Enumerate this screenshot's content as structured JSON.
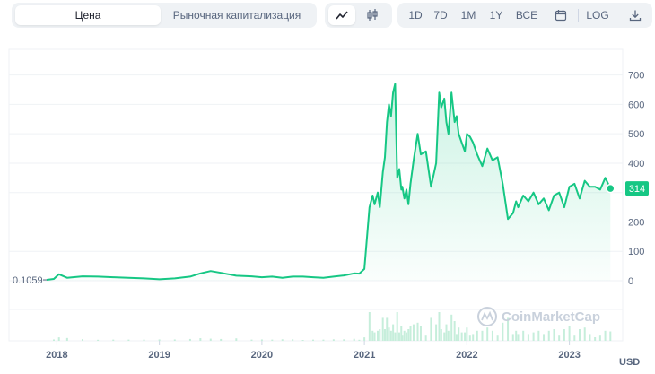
{
  "tabs": {
    "price_label": "Цена",
    "mcap_label": "Рыночная капитализация"
  },
  "chart_types": [
    "line-chart-icon",
    "candlestick-icon"
  ],
  "ranges": [
    "1D",
    "7D",
    "1M",
    "1Y",
    "ВСЕ"
  ],
  "calendar_icon": "calendar-icon",
  "log_label": "LOG",
  "download_icon": "download-icon",
  "colors": {
    "line": "#16c784",
    "bg_button": "#eff2f5",
    "text_muted": "#58667e"
  },
  "chart_data": {
    "type": "area",
    "currency_label": "USD",
    "current_value_label": "314",
    "start_value_label": "0.1059",
    "watermark": "CoinMarketCap",
    "ylim": [
      0,
      760
    ],
    "yticks": [
      "0",
      "100",
      "200",
      "300",
      "400",
      "500",
      "600",
      "700"
    ],
    "xticks": [
      "2018",
      "2019",
      "2020",
      "2021",
      "2022",
      "2023"
    ],
    "xlim": [
      2017.9,
      2023.45
    ],
    "series": [
      {
        "x": [
          2017.9,
          2017.97,
          2018.02,
          2018.1,
          2018.25,
          2018.4,
          2018.55,
          2018.7,
          2018.85,
          2019.0,
          2019.15,
          2019.3,
          2019.4,
          2019.5,
          2019.6,
          2019.75,
          2019.9,
          2020.0,
          2020.1,
          2020.2,
          2020.3,
          2020.4,
          2020.5,
          2020.6,
          2020.7,
          2020.8,
          2020.9,
          2020.95,
          2021.0,
          2021.05,
          2021.08,
          2021.1,
          2021.13,
          2021.15,
          2021.18,
          2021.2,
          2021.22,
          2021.24,
          2021.26,
          2021.28,
          2021.3,
          2021.32,
          2021.34,
          2021.36,
          2021.37,
          2021.39,
          2021.41,
          2021.43,
          2021.45,
          2021.48,
          2021.52,
          2021.55,
          2021.6,
          2021.65,
          2021.7,
          2021.73,
          2021.75,
          2021.78,
          2021.8,
          2021.82,
          2021.85,
          2021.88,
          2021.9,
          2021.92,
          2021.95,
          2021.98,
          2022.0,
          2022.03,
          2022.06,
          2022.1,
          2022.15,
          2022.2,
          2022.25,
          2022.3,
          2022.35,
          2022.4,
          2022.45,
          2022.48,
          2022.5,
          2022.55,
          2022.6,
          2022.65,
          2022.7,
          2022.75,
          2022.8,
          2022.85,
          2022.9,
          2022.95,
          2023.0,
          2023.05,
          2023.1,
          2023.15,
          2023.2,
          2023.25,
          2023.3,
          2023.35,
          2023.4
        ],
        "y": [
          3,
          6,
          22,
          10,
          15,
          14,
          12,
          10,
          8,
          5,
          8,
          14,
          25,
          33,
          27,
          17,
          15,
          12,
          14,
          10,
          14,
          14,
          12,
          10,
          14,
          18,
          25,
          24,
          40,
          250,
          290,
          260,
          300,
          250,
          370,
          420,
          540,
          600,
          560,
          640,
          670,
          350,
          380,
          310,
          320,
          280,
          310,
          260,
          330,
          410,
          500,
          430,
          440,
          320,
          400,
          640,
          590,
          620,
          540,
          500,
          640,
          540,
          560,
          500,
          470,
          440,
          500,
          490,
          470,
          430,
          390,
          450,
          410,
          420,
          330,
          210,
          230,
          270,
          250,
          290,
          270,
          300,
          260,
          280,
          240,
          290,
          300,
          250,
          320,
          330,
          280,
          340,
          320,
          320,
          310,
          350,
          314
        ]
      }
    ]
  }
}
